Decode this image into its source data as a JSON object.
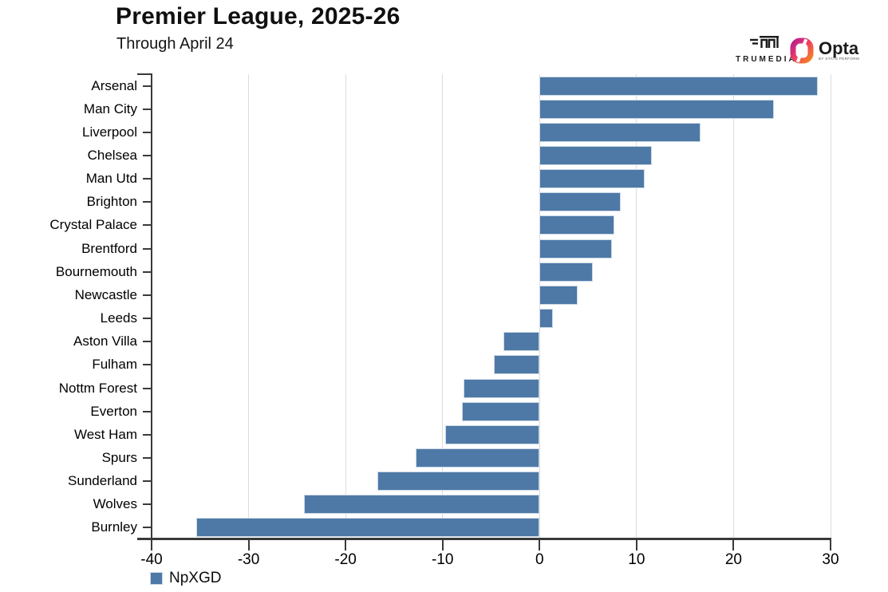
{
  "header": {
    "title": "Premier League, 2025-26",
    "subtitle": "Through April 24"
  },
  "branding": {
    "trumedia_label": "TRUMEDIA",
    "opta_label": "Opta",
    "opta_sublabel": "BY STATS PERFORM"
  },
  "legend": {
    "npxgd_label": "NpXGD"
  },
  "chart_data": {
    "type": "bar",
    "orientation": "horizontal",
    "title": "Premier League, 2025-26",
    "subtitle": "Through April 24",
    "series_name": "NpXGD",
    "categories": [
      "Arsenal",
      "Man City",
      "Liverpool",
      "Chelsea",
      "Man Utd",
      "Brighton",
      "Crystal Palace",
      "Brentford",
      "Bournemouth",
      "Newcastle",
      "Leeds",
      "Aston Villa",
      "Fulham",
      "Nottm Forest",
      "Everton",
      "West Ham",
      "Spurs",
      "Sunderland",
      "Wolves",
      "Burnley"
    ],
    "values": [
      28.7,
      24.2,
      16.6,
      11.6,
      10.8,
      8.4,
      7.7,
      7.5,
      5.5,
      3.9,
      1.4,
      -3.7,
      -4.7,
      -7.8,
      -8.0,
      -9.7,
      -12.8,
      -16.7,
      -24.3,
      -35.4
    ],
    "xlim": [
      -40,
      30
    ],
    "xticks": [
      -40,
      -30,
      -20,
      -10,
      0,
      10,
      20,
      30
    ],
    "grid": true,
    "legend_position": "bottom-left",
    "colors": {
      "bar": "#4e79a7",
      "bar_border": "#ccd9e6",
      "grid": "#dcdcdc",
      "axis": "#3a3a3a",
      "text": "#000000"
    }
  }
}
